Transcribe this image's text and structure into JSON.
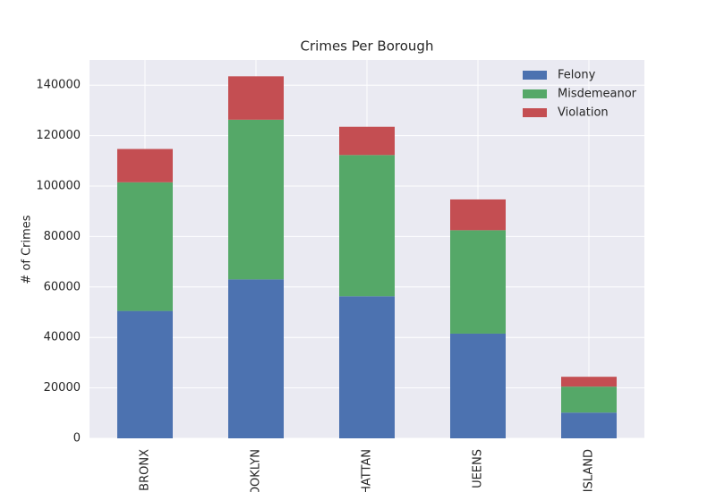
{
  "chart_data": {
    "type": "stacked-bar",
    "title": "Crimes Per Borough",
    "y_label": "# of Crimes",
    "categories": [
      "BRONX",
      "OOKLYN",
      "HATTAN",
      "UEENS",
      "ISLAND"
    ],
    "series": [
      {
        "name": "Felony",
        "color": "#4c72b0",
        "values": [
          50500,
          63000,
          56300,
          41500,
          10200
        ]
      },
      {
        "name": "Misdemeanor",
        "color": "#55a868",
        "values": [
          51000,
          63300,
          56000,
          41000,
          10300
        ]
      },
      {
        "name": "Violation",
        "color": "#c44e52",
        "values": [
          13200,
          17200,
          11200,
          12200,
          3900
        ]
      }
    ],
    "ylim": [
      0,
      150000
    ],
    "yticks": [
      0,
      20000,
      40000,
      60000,
      80000,
      100000,
      120000,
      140000
    ],
    "grid": true,
    "legend": "upper-right"
  }
}
